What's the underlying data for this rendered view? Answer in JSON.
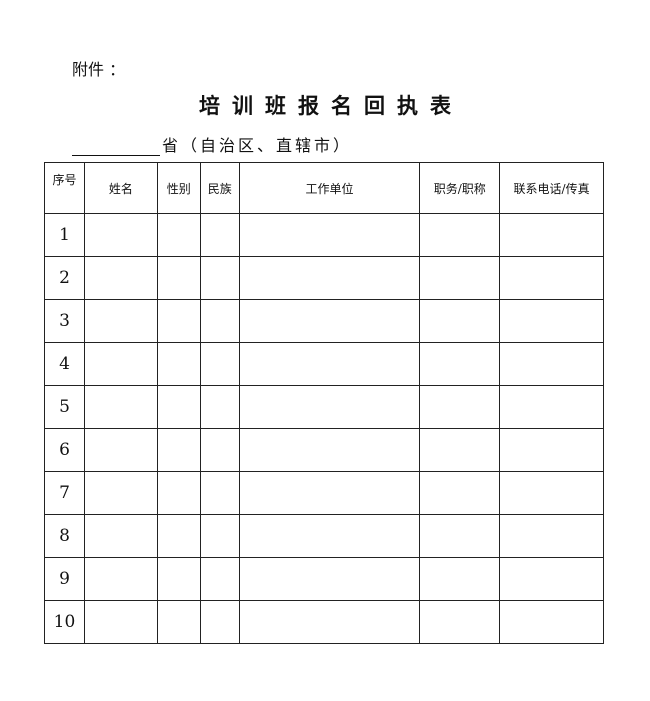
{
  "attachment_label": "附件 ：",
  "title": "培训班报名回执表",
  "province_line": "省（自治区、直辖市）",
  "table": {
    "headers": [
      "序号",
      "姓名",
      "性别",
      "民族",
      "工作单位",
      "职务/职称",
      "联系电话/传真"
    ],
    "rows": [
      "1",
      "2",
      "3",
      "4",
      "5",
      "6",
      "7",
      "8",
      "9",
      "10"
    ]
  }
}
